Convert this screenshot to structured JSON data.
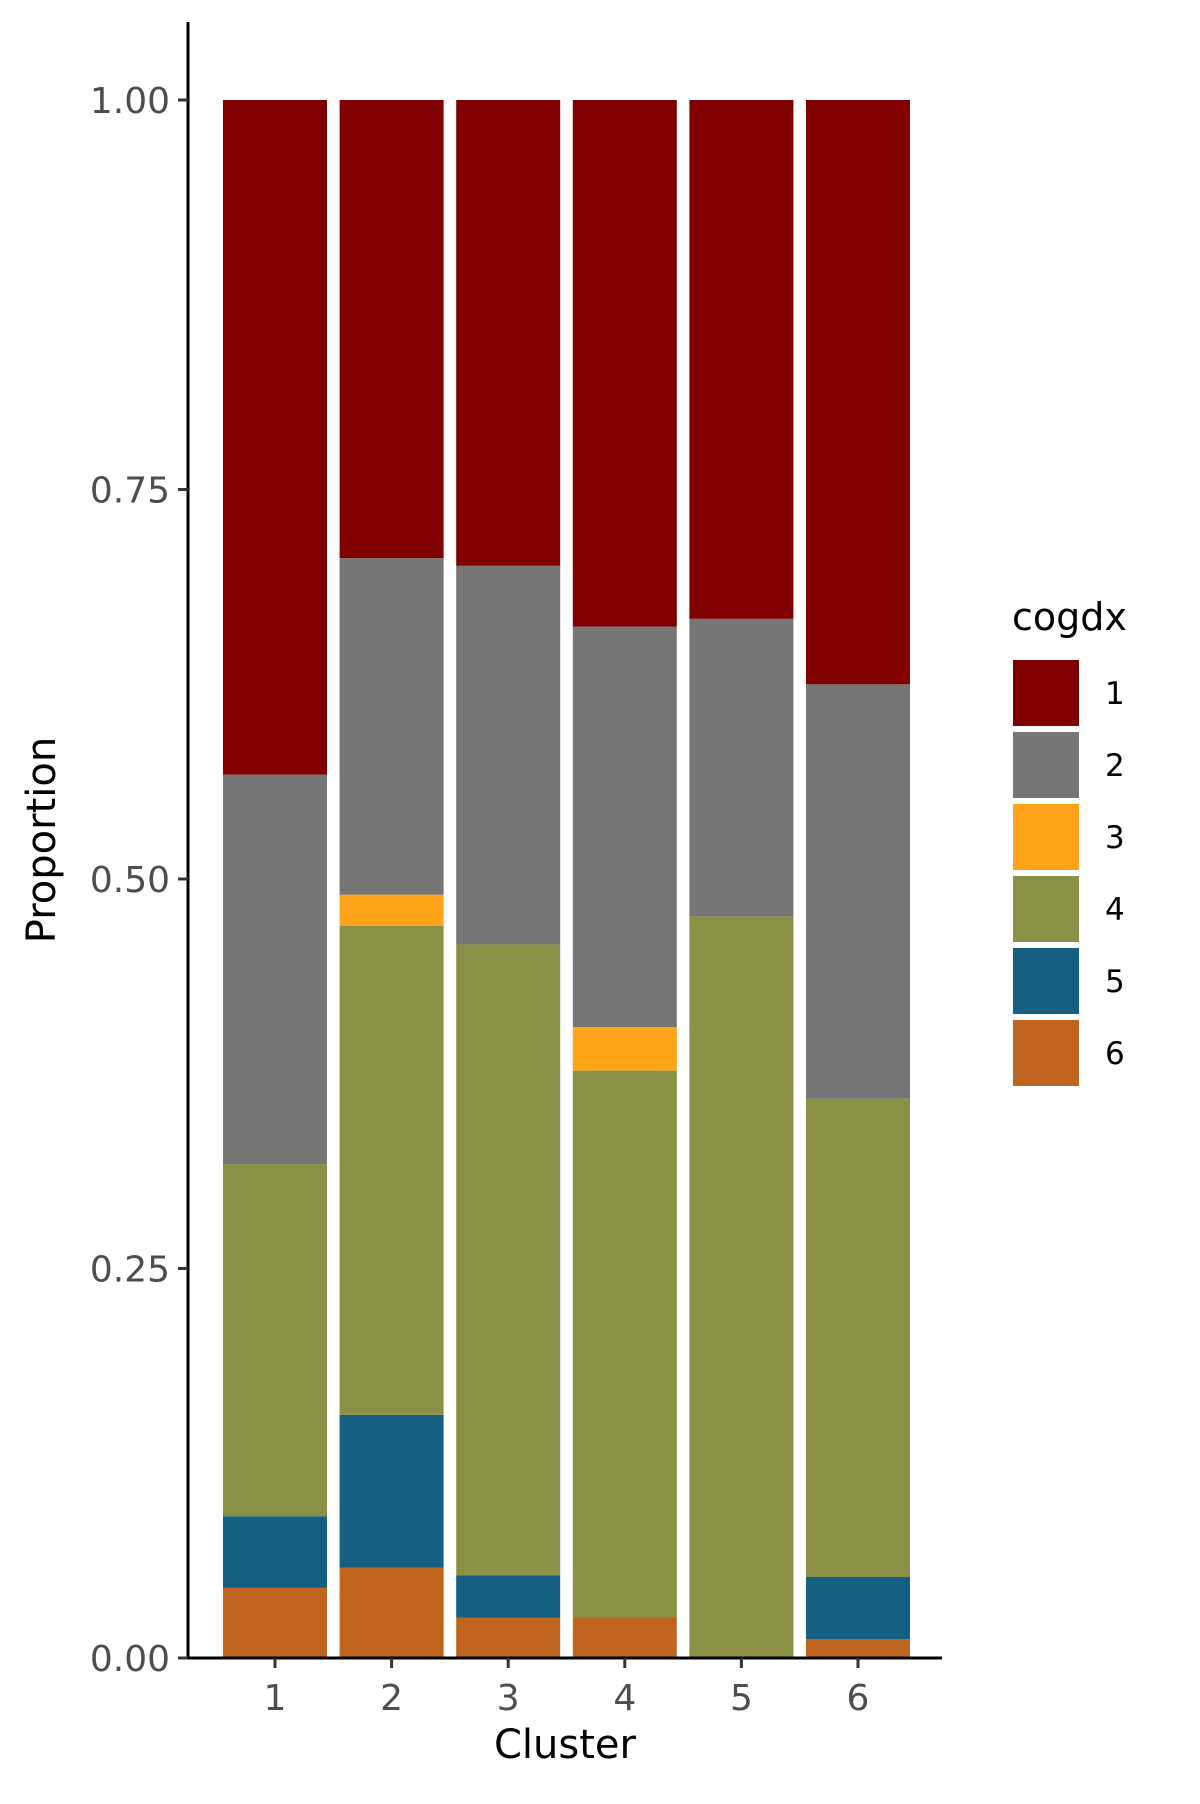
{
  "chart_data": {
    "type": "bar",
    "stacked": true,
    "title": "",
    "xlabel": "Cluster",
    "ylabel": "Proportion",
    "categories": [
      "1",
      "2",
      "3",
      "4",
      "5",
      "6"
    ],
    "ylim": [
      0,
      1
    ],
    "y_ticks": [
      0.0,
      0.25,
      0.5,
      0.75,
      1.0
    ],
    "y_tick_labels": [
      "0.00",
      "0.25",
      "0.50",
      "0.75",
      "1.00"
    ],
    "grid": false,
    "legend": {
      "title": "cogdx",
      "placement": "right"
    },
    "series": [
      {
        "name": "6",
        "color": "#C0651F",
        "values": [
          0.045,
          0.058,
          0.026,
          0.026,
          0.0,
          0.012
        ]
      },
      {
        "name": "5",
        "color": "#155F83",
        "values": [
          0.046,
          0.098,
          0.027,
          0.0,
          0.0,
          0.04
        ]
      },
      {
        "name": "4",
        "color": "#8A9045",
        "values": [
          0.226,
          0.314,
          0.405,
          0.351,
          0.476,
          0.307
        ]
      },
      {
        "name": "3",
        "color": "#FFA319",
        "values": [
          0.0,
          0.02,
          0.0,
          0.028,
          0.0,
          0.0
        ]
      },
      {
        "name": "2",
        "color": "#767676",
        "values": [
          0.25,
          0.216,
          0.243,
          0.257,
          0.191,
          0.266
        ]
      },
      {
        "name": "1",
        "color": "#800000",
        "values": [
          0.433,
          0.294,
          0.299,
          0.338,
          0.333,
          0.375
        ]
      }
    ],
    "legend_order": [
      "1",
      "2",
      "3",
      "4",
      "5",
      "6"
    ]
  }
}
